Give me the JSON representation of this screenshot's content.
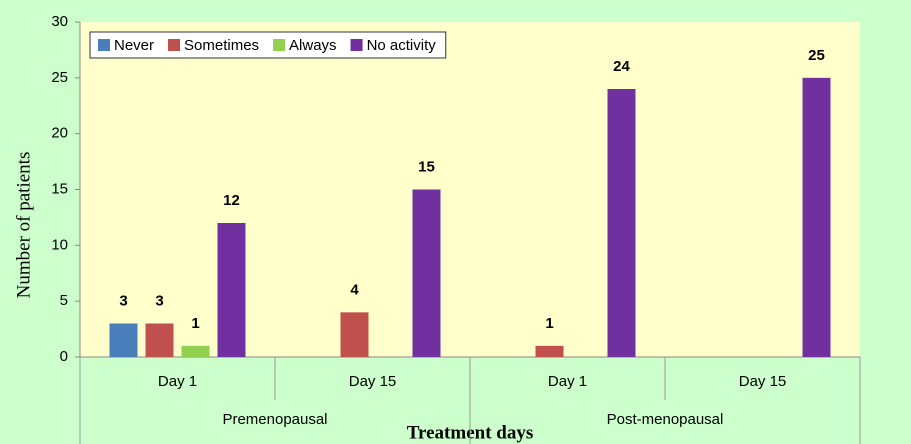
{
  "chart_data": {
    "type": "bar",
    "y_label": "Number of patients",
    "x_label": "Treatment days",
    "categories": [
      "Day 1",
      "Day 15",
      "Day 1",
      "Day 15"
    ],
    "groups": [
      "Premenopausal",
      "Post-menopausal"
    ],
    "series": [
      {
        "name": "Never",
        "color": "#4a7ebb",
        "values": [
          3,
          null,
          null,
          null
        ]
      },
      {
        "name": "Sometimes",
        "color": "#c0504d",
        "values": [
          3,
          4,
          1,
          null
        ]
      },
      {
        "name": "Always",
        "color": "#92d050",
        "values": [
          1,
          null,
          null,
          null
        ]
      },
      {
        "name": "No activity",
        "color": "#7030a0",
        "values": [
          12,
          15,
          24,
          25
        ]
      }
    ],
    "ylim": [
      0,
      30
    ],
    "yticks": [
      0,
      5,
      10,
      15,
      20,
      25,
      30
    ],
    "legend": "top-left",
    "background": "#ccffcc",
    "plot_background": "#ffffcc"
  }
}
